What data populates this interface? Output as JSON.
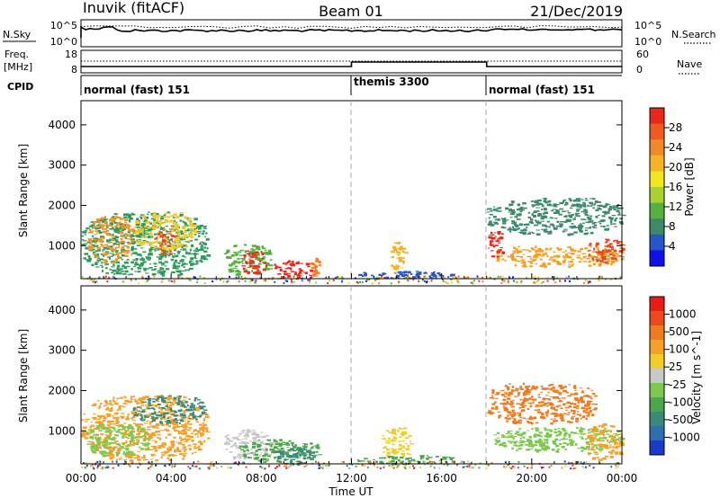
{
  "header": {
    "station": "Inuvik (fitACF)",
    "beam": "Beam 01",
    "date": "21/Dec/2019"
  },
  "status_panels": {
    "sky": {
      "left_label": "N.Sky",
      "right_label": "N.Search",
      "left_ticks": [
        "10^5",
        "10^0"
      ],
      "right_ticks": [
        "10^5",
        "10^0"
      ]
    },
    "freq": {
      "left_label_1": "Freq.",
      "left_label_2": "[MHz]",
      "right_label": "Nave",
      "left_ticks": [
        "18",
        "8"
      ],
      "right_ticks": [
        "60",
        "0"
      ]
    },
    "cpid": {
      "label": "CPID",
      "segments": [
        {
          "start_hour": 0,
          "end_hour": 12,
          "name": "normal (fast) 151"
        },
        {
          "start_hour": 12,
          "end_hour": 18,
          "name": "themis 3300"
        },
        {
          "start_hour": 18,
          "end_hour": 24,
          "name": "normal (fast) 151"
        }
      ]
    }
  },
  "chart_data": [
    {
      "type": "heatmap",
      "title": "Power",
      "ylabel": "Slant Range [km]",
      "ylim": [
        180,
        4600
      ],
      "yticks": [
        "1000",
        "2000",
        "3000",
        "4000"
      ],
      "xlim_hours": [
        0,
        24
      ],
      "colorbar": {
        "label": "Power [dB]",
        "tick_labels": [
          "4",
          "8",
          "12",
          "16",
          "20",
          "24",
          "28"
        ],
        "colors": [
          "#1010e8",
          "#2a55c8",
          "#3c8a6a",
          "#55b040",
          "#a8d232",
          "#f2e61e",
          "#f5b428",
          "#f08a28",
          "#f05a20",
          "#e82818"
        ]
      }
    },
    {
      "type": "heatmap",
      "title": "Velocity",
      "ylabel": "Slant Range [km]",
      "ylim": [
        180,
        4600
      ],
      "yticks": [
        "1000",
        "2000",
        "3000",
        "4000"
      ],
      "xlim_hours": [
        0,
        24
      ],
      "xticks": [
        "00:00",
        "04:00",
        "08:00",
        "12:00",
        "16:00",
        "20:00",
        "00:00"
      ],
      "xlabel": "Time UT",
      "colorbar": {
        "label": "Velocity [m s^-1]",
        "tick_labels": [
          "1000",
          "500",
          "100",
          "25",
          "-25",
          "-100",
          "-500",
          "-1000"
        ],
        "colors": [
          "#1c3ac8",
          "#2f6fb0",
          "#3a8a78",
          "#4ca64c",
          "#7ec850",
          "#c8c8c8",
          "#f2cc28",
          "#f5a028",
          "#f07a20",
          "#ec4a1c",
          "#e81c14"
        ]
      }
    }
  ],
  "blobs": {
    "power": [
      {
        "t0": 0.0,
        "t1": 5.6,
        "r0": 280,
        "r1": 1850,
        "col": "#2e9b5a"
      },
      {
        "t0": 0.3,
        "t1": 2.3,
        "r0": 600,
        "r1": 1750,
        "col": "#f09628"
      },
      {
        "t0": 2.3,
        "t1": 5.0,
        "r0": 900,
        "r1": 1850,
        "col": "#f0c830"
      },
      {
        "t0": 3.3,
        "t1": 4.1,
        "r0": 800,
        "r1": 1400,
        "col": "#e84a20"
      },
      {
        "t0": 6.3,
        "t1": 8.4,
        "r0": 300,
        "r1": 1050,
        "col": "#55b040"
      },
      {
        "t0": 7.1,
        "t1": 8.2,
        "r0": 300,
        "r1": 900,
        "col": "#e83018"
      },
      {
        "t0": 8.5,
        "t1": 10.2,
        "r0": 200,
        "r1": 650,
        "col": "#e82818"
      },
      {
        "t0": 10.1,
        "t1": 10.7,
        "r0": 250,
        "r1": 700,
        "col": "#f07a20"
      },
      {
        "t0": 12.2,
        "t1": 16.5,
        "r0": 200,
        "r1": 380,
        "col": "#2a55c8"
      },
      {
        "t0": 13.7,
        "t1": 14.4,
        "r0": 350,
        "r1": 1100,
        "col": "#f0b428"
      },
      {
        "t0": 18.0,
        "t1": 24.0,
        "r0": 1300,
        "r1": 2200,
        "col": "#3c8a6a"
      },
      {
        "t0": 18.2,
        "t1": 24.0,
        "r0": 500,
        "r1": 1000,
        "col": "#f0a028"
      },
      {
        "t0": 18.0,
        "t1": 18.7,
        "r0": 700,
        "r1": 1400,
        "col": "#e82818"
      },
      {
        "t0": 22.5,
        "t1": 24.0,
        "r0": 600,
        "r1": 1200,
        "col": "#e84a20"
      }
    ],
    "velocity": [
      {
        "t0": 0.0,
        "t1": 5.6,
        "r0": 280,
        "r1": 1900,
        "col": "#f5a028"
      },
      {
        "t0": 2.3,
        "t1": 5.5,
        "r0": 1200,
        "r1": 1900,
        "col": "#3a8a78"
      },
      {
        "t0": 0.2,
        "t1": 3.0,
        "r0": 400,
        "r1": 1200,
        "col": "#7ec850"
      },
      {
        "t0": 6.3,
        "t1": 8.4,
        "r0": 300,
        "r1": 1050,
        "col": "#c8c8c8"
      },
      {
        "t0": 7.0,
        "t1": 10.6,
        "r0": 250,
        "r1": 800,
        "col": "#4ca64c"
      },
      {
        "t0": 8.5,
        "t1": 10.3,
        "r0": 200,
        "r1": 600,
        "col": "#3a8a78"
      },
      {
        "t0": 13.3,
        "t1": 14.6,
        "r0": 250,
        "r1": 1100,
        "col": "#f2cc28"
      },
      {
        "t0": 12.2,
        "t1": 16.5,
        "r0": 200,
        "r1": 400,
        "col": "#4ca64c"
      },
      {
        "t0": 18.0,
        "t1": 22.8,
        "r0": 1200,
        "r1": 2200,
        "col": "#f07a20"
      },
      {
        "t0": 18.3,
        "t1": 24.0,
        "r0": 500,
        "r1": 1100,
        "col": "#7ec850"
      },
      {
        "t0": 22.3,
        "t1": 24.0,
        "r0": 300,
        "r1": 1200,
        "col": "#f5a028"
      }
    ]
  }
}
